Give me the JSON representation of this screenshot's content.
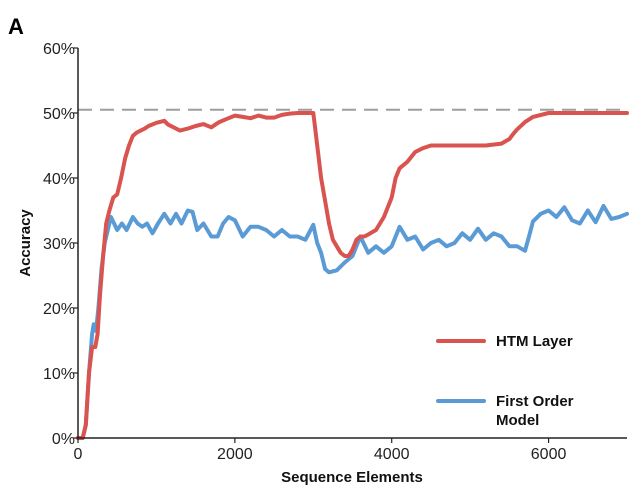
{
  "panel_label": "A",
  "chart_data": {
    "type": "line",
    "title": "",
    "xlabel": "Sequence Elements",
    "ylabel": "Accuracy",
    "xlim": [
      0,
      7000
    ],
    "ylim": [
      0,
      60
    ],
    "x_ticks": [
      0,
      2000,
      4000,
      6000
    ],
    "x_tick_labels": [
      "0",
      "2000",
      "4000",
      "6000"
    ],
    "y_ticks": [
      0,
      10,
      20,
      30,
      40,
      50,
      60
    ],
    "y_tick_labels": [
      "0%",
      "10%",
      "20%",
      "30%",
      "40%",
      "50%",
      "60%"
    ],
    "grid": false,
    "legend_position": "lower-right",
    "reference_line": {
      "y": 50.5,
      "style": "dashed",
      "color": "#9e9e9e"
    },
    "series": [
      {
        "name": "HTM Layer",
        "color": "#d9534f",
        "x": [
          0,
          60,
          100,
          140,
          180,
          220,
          250,
          280,
          320,
          360,
          400,
          450,
          500,
          550,
          600,
          650,
          700,
          750,
          800,
          850,
          900,
          1000,
          1100,
          1150,
          1200,
          1300,
          1400,
          1500,
          1600,
          1700,
          1800,
          1900,
          2000,
          2100,
          2200,
          2300,
          2400,
          2500,
          2600,
          2700,
          2800,
          2900,
          3000,
          3020,
          3060,
          3100,
          3150,
          3200,
          3250,
          3300,
          3350,
          3400,
          3450,
          3500,
          3550,
          3600,
          3650,
          3700,
          3800,
          3900,
          4000,
          4050,
          4100,
          4150,
          4200,
          4300,
          4400,
          4500,
          4600,
          4800,
          5000,
          5200,
          5400,
          5500,
          5550,
          5600,
          5700,
          5800,
          6000,
          6500,
          7000
        ],
        "y": [
          0,
          0,
          2,
          10,
          14,
          14,
          16,
          22,
          28,
          33,
          35,
          37,
          37.5,
          40,
          43,
          45,
          46.5,
          47,
          47.3,
          47.6,
          48,
          48.5,
          48.8,
          48.2,
          47.9,
          47.3,
          47.6,
          48,
          48.3,
          47.8,
          48.6,
          49.1,
          49.6,
          49.4,
          49.2,
          49.6,
          49.3,
          49.3,
          49.7,
          49.9,
          50,
          50,
          50,
          48,
          44,
          40,
          36.5,
          33,
          30.5,
          29.5,
          28.5,
          28,
          28,
          29,
          30.5,
          31,
          31,
          31.3,
          32,
          34,
          37,
          40,
          41.5,
          42,
          42.5,
          44,
          44.6,
          45,
          45,
          45,
          45,
          45,
          45.3,
          46,
          46.8,
          47.5,
          48.6,
          49.4,
          50,
          50,
          50
        ]
      },
      {
        "name": "First Order Model",
        "color": "#5b9bd5",
        "x": [
          0,
          60,
          100,
          140,
          180,
          200,
          230,
          260,
          300,
          340,
          380,
          420,
          460,
          500,
          560,
          620,
          700,
          760,
          820,
          880,
          950,
          1020,
          1100,
          1180,
          1250,
          1320,
          1400,
          1460,
          1520,
          1600,
          1700,
          1780,
          1850,
          1920,
          2000,
          2100,
          2200,
          2300,
          2400,
          2500,
          2600,
          2700,
          2800,
          2900,
          3000,
          3050,
          3100,
          3150,
          3200,
          3300,
          3400,
          3500,
          3600,
          3700,
          3800,
          3900,
          4000,
          4100,
          4200,
          4300,
          4400,
          4500,
          4600,
          4700,
          4800,
          4900,
          5000,
          5100,
          5200,
          5300,
          5400,
          5500,
          5600,
          5700,
          5750,
          5800,
          5900,
          6000,
          6100,
          6200,
          6300,
          6400,
          6500,
          6600,
          6700,
          6800,
          6900,
          7000
        ],
        "y": [
          0,
          0,
          2,
          10,
          16,
          17.5,
          16.5,
          20,
          26,
          30,
          32,
          34,
          33,
          32,
          33,
          32,
          34,
          33,
          32.5,
          33,
          31.5,
          33,
          34.5,
          33,
          34.5,
          33,
          35,
          34.8,
          32,
          33,
          31,
          31,
          33,
          34,
          33.5,
          31,
          32.5,
          32.5,
          32,
          31,
          32,
          31,
          31,
          30.5,
          32.8,
          30,
          28.5,
          26,
          25.5,
          25.8,
          27,
          28,
          31,
          28.5,
          29.5,
          28.5,
          29.5,
          32.5,
          30.5,
          31,
          29,
          30,
          30.5,
          29.5,
          30,
          31.5,
          30.5,
          32.2,
          30.5,
          31.5,
          31,
          29.5,
          29.5,
          28.8,
          31,
          33.3,
          34.5,
          35,
          34,
          35.5,
          33.5,
          33,
          35,
          33.2,
          35.7,
          33.7,
          34,
          34.5
        ]
      }
    ]
  }
}
